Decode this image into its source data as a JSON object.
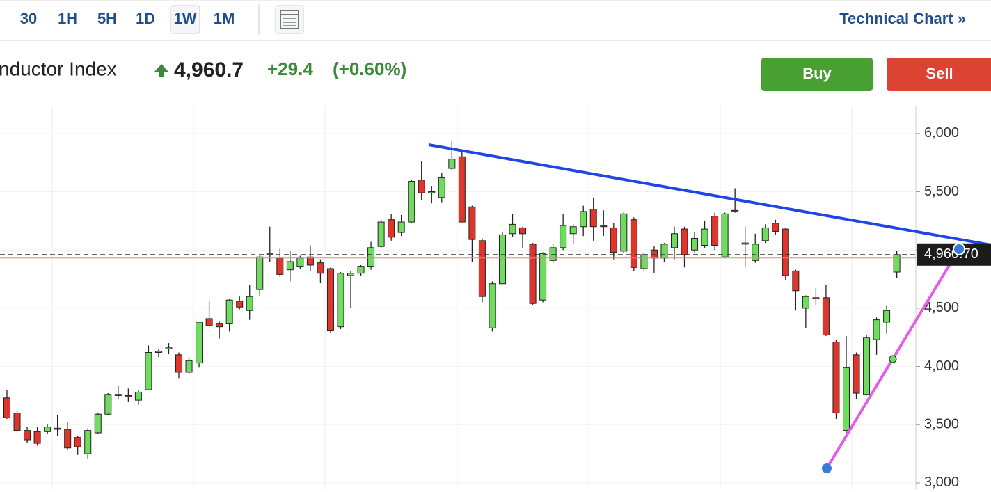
{
  "toolbar": {
    "intervals": [
      "30",
      "1H",
      "5H",
      "1D",
      "1W",
      "1M"
    ],
    "selected": "1W",
    "link": "Technical Chart »"
  },
  "header": {
    "name": "nductor Index",
    "price": "4,960.7",
    "change": "+29.4",
    "change_pct": "(+0.60%)",
    "buy": "Buy",
    "sell": "Sell"
  },
  "chart_data": {
    "type": "candlestick",
    "categories": [
      null,
      null,
      null,
      null,
      null,
      null,
      null,
      null,
      null,
      null,
      null,
      null,
      null,
      null,
      null,
      null,
      null,
      null,
      null,
      null,
      null,
      null,
      null,
      null,
      null,
      null,
      null,
      null,
      null,
      null,
      null,
      null,
      null,
      null,
      null,
      null,
      null,
      null,
      null,
      null,
      null,
      null,
      null,
      null,
      null,
      null,
      null,
      null,
      null,
      null,
      null,
      null,
      null,
      null,
      null,
      null,
      null,
      null,
      null,
      null,
      null,
      null,
      null,
      null,
      null,
      null,
      null,
      null,
      null,
      null,
      null,
      null,
      null,
      null,
      null,
      null,
      null,
      null,
      null,
      null,
      null,
      null,
      null,
      null,
      null,
      null,
      null,
      null,
      null
    ],
    "open": [
      3730,
      3600,
      3450,
      3440,
      3440,
      3460,
      3460,
      3390,
      3250,
      3430,
      3590,
      3760,
      3750,
      3710,
      3800,
      4120,
      4150,
      4100,
      3950,
      4030,
      4410,
      4370,
      4370,
      4560,
      4480,
      4660,
      4960,
      4930,
      4830,
      4860,
      4940,
      4890,
      4840,
      4340,
      4780,
      4800,
      4860,
      5030,
      5260,
      5150,
      5240,
      5600,
      5490,
      5450,
      5700,
      5800,
      5370,
      5080,
      4330,
      4710,
      5140,
      5190,
      5050,
      4570,
      4910,
      5020,
      5140,
      5200,
      5350,
      5210,
      5190,
      4990,
      5260,
      4840,
      5000,
      4930,
      5020,
      5180,
      5000,
      5040,
      5290,
      4940,
      5340,
      5050,
      4910,
      5080,
      5230,
      5180,
      4820,
      4500,
      4590,
      4590,
      4210,
      3450,
      4100,
      3760,
      4230,
      4380,
      4810
    ],
    "high": [
      3800,
      3620,
      3480,
      3480,
      3500,
      3580,
      3520,
      3400,
      3470,
      3600,
      3770,
      3830,
      3810,
      3800,
      4180,
      4150,
      4200,
      4120,
      4080,
      4380,
      4560,
      4390,
      4580,
      4600,
      4700,
      4960,
      5200,
      5010,
      4990,
      4950,
      5040,
      4920,
      4850,
      4810,
      4820,
      4870,
      5070,
      5260,
      5310,
      5300,
      5600,
      5760,
      5550,
      5660,
      5940,
      5850,
      5380,
      5100,
      4730,
      5150,
      5310,
      5200,
      5060,
      4980,
      5050,
      5310,
      5220,
      5380,
      5450,
      5340,
      5230,
      5330,
      5280,
      4980,
      5030,
      5060,
      5200,
      5200,
      5150,
      5250,
      5320,
      5320,
      5530,
      5200,
      5140,
      5220,
      5260,
      5190,
      4830,
      4610,
      4670,
      4700,
      4230,
      4260,
      4120,
      4270,
      4420,
      4520,
      4990
    ],
    "low": [
      3550,
      3440,
      3340,
      3320,
      3420,
      3400,
      3280,
      3240,
      3210,
      3420,
      3580,
      3720,
      3700,
      3670,
      3800,
      4080,
      4110,
      3900,
      3940,
      3990,
      4340,
      4240,
      4300,
      4490,
      4400,
      4600,
      4900,
      4770,
      4730,
      4840,
      4820,
      4720,
      4290,
      4320,
      4500,
      4780,
      4830,
      5020,
      5080,
      5120,
      5230,
      5430,
      5400,
      5410,
      5680,
      5240,
      4900,
      4550,
      4300,
      4710,
      5110,
      5020,
      4530,
      4550,
      4890,
      5000,
      5050,
      5120,
      5080,
      5120,
      4920,
      4970,
      4820,
      4820,
      4800,
      4900,
      4920,
      4850,
      4980,
      5020,
      5000,
      4930,
      5320,
      4850,
      4890,
      5060,
      5130,
      4740,
      4480,
      4330,
      4530,
      4260,
      3550,
      3430,
      3720,
      3750,
      4100,
      4280,
      4760
    ],
    "close": [
      3560,
      3450,
      3370,
      3340,
      3480,
      3470,
      3300,
      3310,
      3450,
      3590,
      3760,
      3750,
      3740,
      3780,
      4120,
      4130,
      4160,
      3950,
      4050,
      4380,
      4350,
      4340,
      4570,
      4510,
      4600,
      4940,
      4970,
      4790,
      4900,
      4930,
      4870,
      4800,
      4310,
      4800,
      4800,
      4860,
      5020,
      5240,
      5110,
      5240,
      5590,
      5490,
      5500,
      5620,
      5780,
      5240,
      5090,
      4600,
      4710,
      5130,
      5220,
      5140,
      4540,
      4970,
      5020,
      5210,
      5200,
      5330,
      5200,
      5200,
      4980,
      5310,
      4850,
      4960,
      4930,
      5050,
      5140,
      4960,
      5100,
      5180,
      5040,
      5310,
      5330,
      5060,
      5050,
      5190,
      5160,
      4780,
      4650,
      4600,
      4580,
      4270,
      3600,
      3990,
      3770,
      4250,
      4400,
      4480,
      4960
    ],
    "up_color": "#6fdc5f",
    "down_color": "#e0352b",
    "last_price": {
      "value": 4960.7,
      "label": "4,960.70"
    },
    "ylim": [
      2952,
      6238
    ],
    "yticks": [
      {
        "value": 3000,
        "label": "3,000"
      },
      {
        "value": 3500,
        "label": "3,500"
      },
      {
        "value": 4000,
        "label": "4,000"
      },
      {
        "value": 4500,
        "label": "4,500"
      },
      {
        "value": 5000,
        "label": "5,000"
      },
      {
        "value": 5500,
        "label": "5,500"
      },
      {
        "value": 6000,
        "label": "6,000"
      }
    ],
    "grid": true
  }
}
